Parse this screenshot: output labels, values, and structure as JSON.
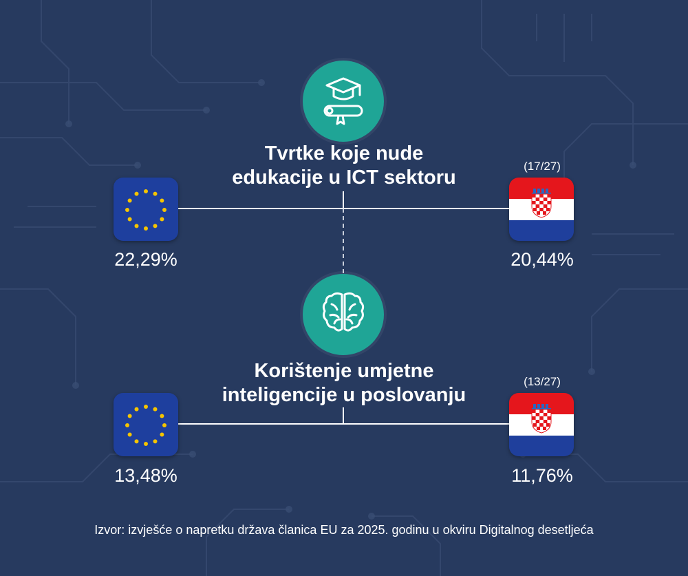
{
  "sections": [
    {
      "icon": "graduation-cap-diploma-icon",
      "title_line1": "Tvrtke koje nude",
      "title_line2": "edukacije u ICT sektoru",
      "eu_value": "22,29%",
      "hr_value": "20,44%",
      "hr_rank": "(17/27)"
    },
    {
      "icon": "brain-icon",
      "title_line1": "Korištenje umjetne",
      "title_line2": "inteligencije u poslovanju",
      "eu_value": "13,48%",
      "hr_value": "11,76%",
      "hr_rank": "(13/27)"
    }
  ],
  "source": "Izvor: izvješće o napretku država članica EU za 2025. godinu u okviru Digitalnog desetljeća",
  "colors": {
    "background": "#273a5f",
    "accent": "#1fa596",
    "eu_blue": "#1e3f9e",
    "eu_star": "#f5c400",
    "hr_red": "#e5161c",
    "hr_blue": "#1f3f9c"
  }
}
